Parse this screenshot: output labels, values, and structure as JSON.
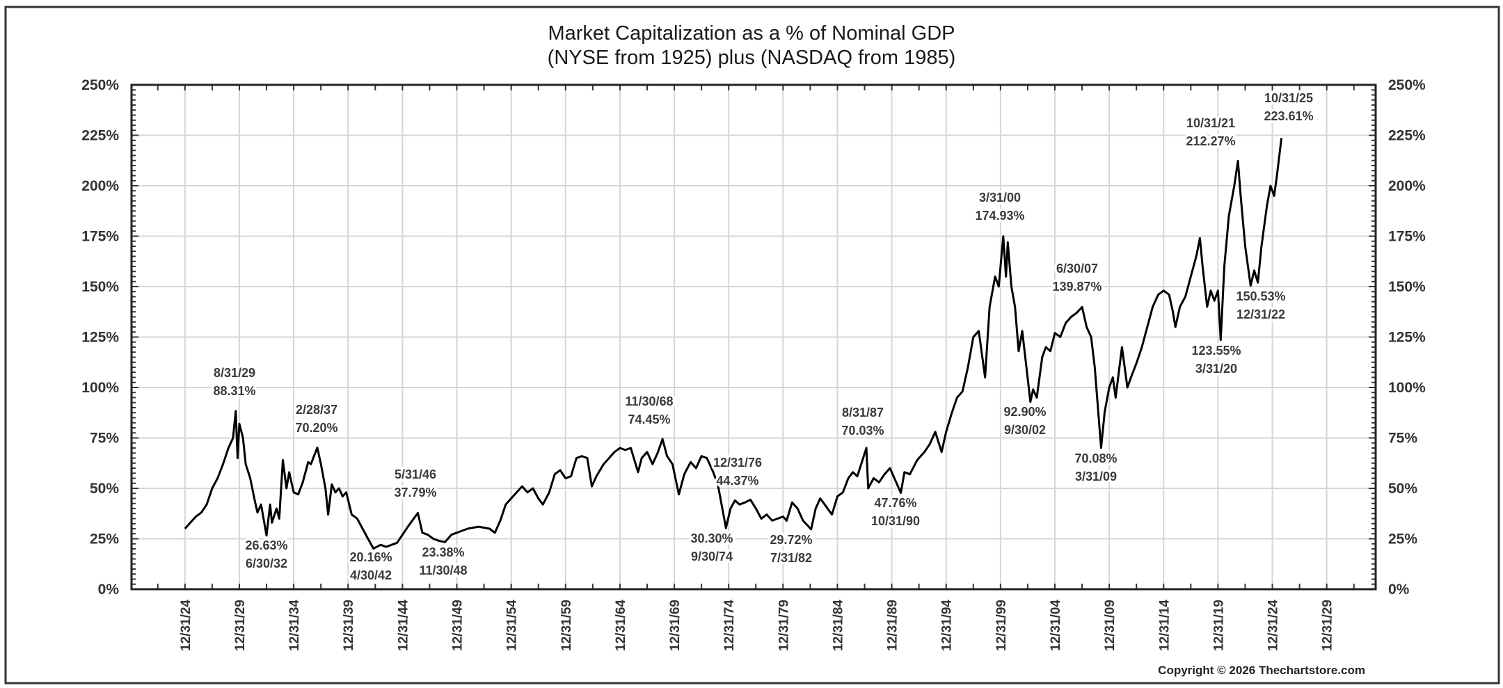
{
  "chart_data": {
    "type": "line",
    "title": "Market Capitalization as a % of Nominal GDP",
    "subtitle": "(NYSE from 1925) plus (NASDAQ from 1985)",
    "xlabel": "",
    "ylabel": "",
    "xlim": [
      "1920-01",
      "2034-06"
    ],
    "ylim": [
      0,
      250
    ],
    "grid": true,
    "legend": "none",
    "line_color": "#000000",
    "y_ticks": [
      "0%",
      "25%",
      "50%",
      "75%",
      "100%",
      "125%",
      "150%",
      "175%",
      "200%",
      "225%",
      "250%"
    ],
    "y_tick_values": [
      0,
      25,
      50,
      75,
      100,
      125,
      150,
      175,
      200,
      225,
      250
    ],
    "y_axis_sides": [
      "left",
      "right"
    ],
    "x_ticks": [
      "12/31/24",
      "12/31/29",
      "12/31/34",
      "12/31/39",
      "12/31/44",
      "12/31/49",
      "12/31/54",
      "12/31/59",
      "12/31/64",
      "12/31/69",
      "12/31/74",
      "12/31/79",
      "12/31/84",
      "12/31/89",
      "12/31/94",
      "12/31/99",
      "12/31/04",
      "12/31/09",
      "12/31/14",
      "12/31/19",
      "12/31/24",
      "12/31/29"
    ],
    "x_tick_dates": [
      "1924-12",
      "1929-12",
      "1934-12",
      "1939-12",
      "1944-12",
      "1949-12",
      "1954-12",
      "1959-12",
      "1964-12",
      "1969-12",
      "1974-12",
      "1979-12",
      "1984-12",
      "1989-12",
      "1994-12",
      "1999-12",
      "2004-12",
      "2009-12",
      "2014-12",
      "2019-12",
      "2024-12",
      "2029-12"
    ],
    "series": [
      {
        "points": [
          [
            "1924-12",
            30
          ],
          [
            "1925-06",
            33
          ],
          [
            "1925-12",
            36
          ],
          [
            "1926-06",
            38
          ],
          [
            "1926-12",
            42
          ],
          [
            "1927-06",
            50
          ],
          [
            "1927-12",
            55
          ],
          [
            "1928-06",
            62
          ],
          [
            "1928-12",
            70
          ],
          [
            "1929-05",
            75
          ],
          [
            "1929-08",
            88.31
          ],
          [
            "1929-10",
            65
          ],
          [
            "1929-12",
            82
          ],
          [
            "1930-04",
            75
          ],
          [
            "1930-07",
            62
          ],
          [
            "1930-12",
            55
          ],
          [
            "1931-05",
            44
          ],
          [
            "1931-08",
            38
          ],
          [
            "1931-12",
            42
          ],
          [
            "1932-06",
            26.63
          ],
          [
            "1932-10",
            42
          ],
          [
            "1932-12",
            33
          ],
          [
            "1933-05",
            40
          ],
          [
            "1933-08",
            35
          ],
          [
            "1933-12",
            64
          ],
          [
            "1934-04",
            50
          ],
          [
            "1934-07",
            58
          ],
          [
            "1934-12",
            48
          ],
          [
            "1935-05",
            47
          ],
          [
            "1935-10",
            53
          ],
          [
            "1936-04",
            63
          ],
          [
            "1936-07",
            62
          ],
          [
            "1937-02",
            70.2
          ],
          [
            "1937-06",
            62
          ],
          [
            "1937-11",
            50
          ],
          [
            "1938-02",
            37
          ],
          [
            "1938-06",
            52
          ],
          [
            "1938-10",
            48
          ],
          [
            "1939-02",
            50
          ],
          [
            "1939-06",
            46
          ],
          [
            "1939-10",
            48
          ],
          [
            "1940-04",
            37
          ],
          [
            "1940-10",
            35
          ],
          [
            "1941-04",
            30
          ],
          [
            "1941-10",
            25
          ],
          [
            "1942-04",
            20.16
          ],
          [
            "1942-12",
            22
          ],
          [
            "1943-06",
            21
          ],
          [
            "1943-12",
            22
          ],
          [
            "1944-06",
            23
          ],
          [
            "1944-12",
            27
          ],
          [
            "1945-06",
            31
          ],
          [
            "1946-05",
            37.79
          ],
          [
            "1946-10",
            28
          ],
          [
            "1947-04",
            27
          ],
          [
            "1947-10",
            25
          ],
          [
            "1948-04",
            24
          ],
          [
            "1948-11",
            23.38
          ],
          [
            "1949-06",
            27
          ],
          [
            "1949-12",
            28
          ],
          [
            "1950-06",
            29
          ],
          [
            "1950-12",
            30
          ],
          [
            "1951-12",
            31
          ],
          [
            "1952-12",
            30
          ],
          [
            "1953-06",
            28
          ],
          [
            "1953-12",
            34
          ],
          [
            "1954-06",
            42
          ],
          [
            "1954-12",
            45
          ],
          [
            "1955-06",
            48
          ],
          [
            "1955-12",
            51
          ],
          [
            "1956-06",
            48
          ],
          [
            "1956-12",
            50
          ],
          [
            "1957-06",
            45
          ],
          [
            "1957-11",
            42
          ],
          [
            "1958-06",
            48
          ],
          [
            "1958-12",
            57
          ],
          [
            "1959-06",
            59
          ],
          [
            "1959-12",
            55
          ],
          [
            "1960-06",
            56
          ],
          [
            "1960-12",
            65
          ],
          [
            "1961-06",
            66
          ],
          [
            "1961-12",
            65
          ],
          [
            "1962-05",
            51
          ],
          [
            "1962-10",
            56
          ],
          [
            "1963-06",
            62
          ],
          [
            "1963-12",
            65
          ],
          [
            "1964-06",
            68
          ],
          [
            "1964-12",
            70
          ],
          [
            "1965-06",
            69
          ],
          [
            "1965-12",
            70
          ],
          [
            "1966-08",
            58
          ],
          [
            "1966-12",
            65
          ],
          [
            "1967-06",
            68
          ],
          [
            "1967-12",
            62
          ],
          [
            "1968-06",
            68
          ],
          [
            "1968-11",
            74.45
          ],
          [
            "1969-04",
            66
          ],
          [
            "1969-10",
            62
          ],
          [
            "1970-05",
            47
          ],
          [
            "1970-11",
            57
          ],
          [
            "1971-06",
            63
          ],
          [
            "1971-12",
            60
          ],
          [
            "1972-06",
            66
          ],
          [
            "1972-12",
            65
          ],
          [
            "1973-07",
            58
          ],
          [
            "1973-12",
            52
          ],
          [
            "1974-09",
            30.3
          ],
          [
            "1975-02",
            40
          ],
          [
            "1975-07",
            44
          ],
          [
            "1975-12",
            42
          ],
          [
            "1976-06",
            43
          ],
          [
            "1976-12",
            44.37
          ],
          [
            "1977-06",
            40
          ],
          [
            "1977-12",
            35
          ],
          [
            "1978-06",
            37
          ],
          [
            "1978-12",
            34
          ],
          [
            "1979-06",
            35
          ],
          [
            "1979-12",
            36
          ],
          [
            "1980-04",
            34
          ],
          [
            "1980-10",
            43
          ],
          [
            "1981-04",
            40
          ],
          [
            "1981-10",
            34
          ],
          [
            "1982-07",
            29.72
          ],
          [
            "1982-12",
            40
          ],
          [
            "1983-05",
            45
          ],
          [
            "1983-10",
            42
          ],
          [
            "1984-06",
            37
          ],
          [
            "1984-12",
            46
          ],
          [
            "1985-06",
            48
          ],
          [
            "1985-12",
            55
          ],
          [
            "1986-05",
            58
          ],
          [
            "1986-10",
            56
          ],
          [
            "1987-08",
            70.03
          ],
          [
            "1987-10",
            50
          ],
          [
            "1988-04",
            55
          ],
          [
            "1988-10",
            53
          ],
          [
            "1989-04",
            57
          ],
          [
            "1989-10",
            60
          ],
          [
            "1990-10",
            47.76
          ],
          [
            "1991-02",
            58
          ],
          [
            "1991-08",
            57
          ],
          [
            "1992-04",
            64
          ],
          [
            "1992-12",
            68
          ],
          [
            "1993-06",
            72
          ],
          [
            "1993-12",
            78
          ],
          [
            "1994-07",
            68
          ],
          [
            "1994-12",
            78
          ],
          [
            "1995-06",
            87
          ],
          [
            "1995-12",
            95
          ],
          [
            "1996-06",
            98
          ],
          [
            "1996-12",
            110
          ],
          [
            "1997-06",
            125
          ],
          [
            "1997-12",
            128
          ],
          [
            "1998-07",
            105
          ],
          [
            "1998-12",
            140
          ],
          [
            "1999-06",
            155
          ],
          [
            "1999-10",
            150
          ],
          [
            "2000-03",
            174.93
          ],
          [
            "2000-06",
            155
          ],
          [
            "2000-08",
            172
          ],
          [
            "2000-12",
            150
          ],
          [
            "2001-04",
            140
          ],
          [
            "2001-08",
            118
          ],
          [
            "2001-12",
            128
          ],
          [
            "2002-09",
            92.9
          ],
          [
            "2002-12",
            99
          ],
          [
            "2003-04",
            95
          ],
          [
            "2003-10",
            115
          ],
          [
            "2004-02",
            120
          ],
          [
            "2004-07",
            118
          ],
          [
            "2004-12",
            127
          ],
          [
            "2005-06",
            125
          ],
          [
            "2005-12",
            132
          ],
          [
            "2006-06",
            135
          ],
          [
            "2006-12",
            137
          ],
          [
            "2007-06",
            139.87
          ],
          [
            "2007-11",
            130
          ],
          [
            "2008-04",
            125
          ],
          [
            "2008-08",
            110
          ],
          [
            "2009-03",
            70.08
          ],
          [
            "2009-07",
            88
          ],
          [
            "2009-12",
            100
          ],
          [
            "2010-04",
            105
          ],
          [
            "2010-07",
            95
          ],
          [
            "2011-02",
            120
          ],
          [
            "2011-08",
            100
          ],
          [
            "2011-12",
            105
          ],
          [
            "2012-06",
            112
          ],
          [
            "2012-12",
            120
          ],
          [
            "2013-06",
            130
          ],
          [
            "2013-12",
            140
          ],
          [
            "2014-06",
            146
          ],
          [
            "2014-12",
            148
          ],
          [
            "2015-06",
            146
          ],
          [
            "2015-10",
            138
          ],
          [
            "2016-01",
            130
          ],
          [
            "2016-06",
            140
          ],
          [
            "2016-12",
            145
          ],
          [
            "2017-06",
            155
          ],
          [
            "2017-12",
            165
          ],
          [
            "2018-04",
            174
          ],
          [
            "2018-07",
            160
          ],
          [
            "2018-12",
            140
          ],
          [
            "2019-04",
            148
          ],
          [
            "2019-08",
            143
          ],
          [
            "2019-12",
            148
          ],
          [
            "2020-03",
            123.55
          ],
          [
            "2020-07",
            160
          ],
          [
            "2020-12",
            185
          ],
          [
            "2021-06",
            200
          ],
          [
            "2021-10",
            212.27
          ],
          [
            "2022-01",
            195
          ],
          [
            "2022-06",
            170
          ],
          [
            "2022-12",
            150.53
          ],
          [
            "2023-04",
            158
          ],
          [
            "2023-08",
            152
          ],
          [
            "2023-12",
            170
          ],
          [
            "2024-06",
            190
          ],
          [
            "2024-10",
            200
          ],
          [
            "2025-02",
            195
          ],
          [
            "2025-05",
            205
          ],
          [
            "2025-10",
            223.61
          ]
        ]
      }
    ],
    "annotations": [
      {
        "lines": [
          "8/31/29",
          "88.31%"
        ]
      },
      {
        "lines": [
          "26.63%",
          "6/30/32"
        ]
      },
      {
        "lines": [
          "2/28/37",
          "70.20%"
        ]
      },
      {
        "lines": [
          "20.16%",
          "4/30/42"
        ]
      },
      {
        "lines": [
          "5/31/46",
          "37.79%"
        ]
      },
      {
        "lines": [
          "23.38%",
          "11/30/48"
        ]
      },
      {
        "lines": [
          "11/30/68",
          "74.45%"
        ]
      },
      {
        "lines": [
          "30.30%",
          "9/30/74"
        ]
      },
      {
        "lines": [
          "12/31/76",
          "44.37%"
        ]
      },
      {
        "lines": [
          "29.72%",
          "7/31/82"
        ]
      },
      {
        "lines": [
          "8/31/87",
          "70.03%"
        ]
      },
      {
        "lines": [
          "47.76%",
          "10/31/90"
        ]
      },
      {
        "lines": [
          "3/31/00",
          "174.93%"
        ]
      },
      {
        "lines": [
          "92.90%",
          "9/30/02"
        ]
      },
      {
        "lines": [
          "6/30/07",
          "139.87%"
        ]
      },
      {
        "lines": [
          "70.08%",
          "3/31/09"
        ]
      },
      {
        "lines": [
          "123.55%",
          "3/31/20"
        ]
      },
      {
        "lines": [
          "10/31/21",
          "212.27%"
        ]
      },
      {
        "lines": [
          "150.53%",
          "12/31/22"
        ]
      },
      {
        "lines": [
          "10/31/25",
          "223.61%"
        ]
      }
    ],
    "copyright": "Copyright © 2026 Thechartstore.com"
  }
}
